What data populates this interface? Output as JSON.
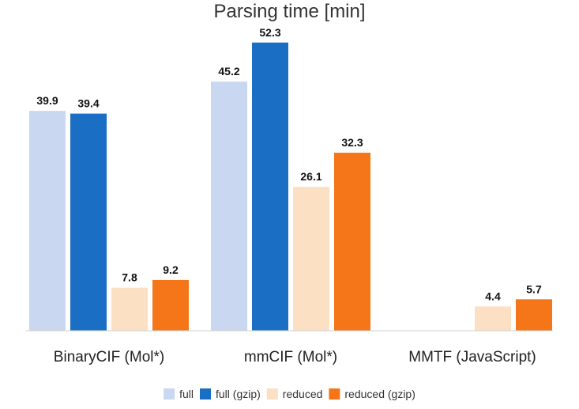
{
  "chart_data": {
    "type": "bar",
    "title": "Parsing time [min]",
    "xlabel": "",
    "ylabel": "",
    "ylim": [
      0,
      56
    ],
    "grid": false,
    "legend_position": "bottom",
    "categories": [
      "BinaryCIF (Mol*)",
      "mmCIF (Mol*)",
      "MMTF (JavaScript)"
    ],
    "series": [
      {
        "name": "full",
        "color": "#c9d7f1",
        "values": [
          39.9,
          45.2,
          null
        ]
      },
      {
        "name": "full (gzip)",
        "color": "#1a6fc4",
        "values": [
          39.4,
          52.3,
          null
        ]
      },
      {
        "name": "reduced",
        "color": "#fce0c3",
        "values": [
          7.8,
          26.1,
          4.4
        ]
      },
      {
        "name": "reduced (gzip)",
        "color": "#f47618",
        "values": [
          9.2,
          32.3,
          5.7
        ]
      }
    ]
  }
}
